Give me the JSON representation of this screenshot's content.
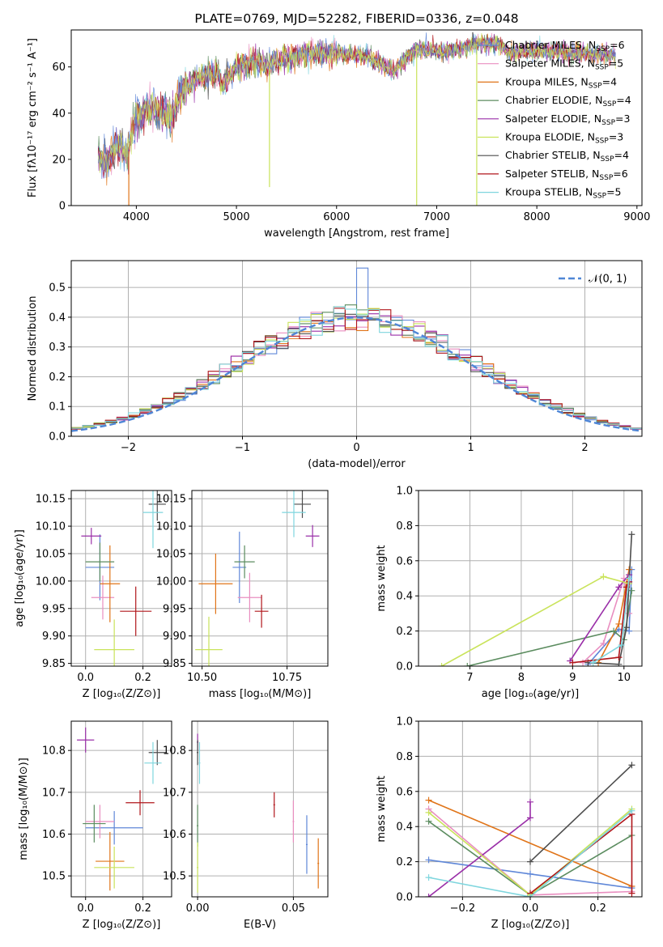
{
  "colors": {
    "s0": "#5f87d8",
    "s1": "#e98ec0",
    "s2": "#e07418",
    "s3": "#5b8c5f",
    "s4": "#9a2fa8",
    "s5": "#c9e35a",
    "s6": "#4d4d4d",
    "s7": "#b0161b",
    "s8": "#7fd6de",
    "normal": "#4f86d6",
    "grid": "#b0b0b0"
  },
  "chart_data": [
    {
      "id": "spectrum",
      "type": "line",
      "title": "PLATE=0769, MJD=52282, FIBERID=0336, z=0.048",
      "xlabel": "wavelength [Angstrom, rest frame]",
      "ylabel": "Flux [fλ10⁻¹⁷ erg cm⁻² s⁻¹ A⁻¹]",
      "xlim": [
        3350,
        9050
      ],
      "ylim": [
        0,
        76
      ],
      "xticks": [
        4000,
        5000,
        6000,
        7000,
        8000,
        9000
      ],
      "yticks": [
        0,
        20,
        40,
        60
      ],
      "grid": false,
      "legend_position": "right",
      "legend": [
        {
          "label": "Chabrier MILES, N_SSP=6"
        },
        {
          "label": "Salpeter MILES, N_SSP=5"
        },
        {
          "label": "Kroupa MILES, N_SSP=4"
        },
        {
          "label": "Chabrier ELODIE, N_SSP=4"
        },
        {
          "label": "Salpeter ELODIE, N_SSP=3"
        },
        {
          "label": "Kroupa ELODIE, N_SSP=3"
        },
        {
          "label": "Chabrier STELIB, N_SSP=4"
        },
        {
          "label": "Salpeter STELIB, N_SSP=6"
        },
        {
          "label": "Kroupa STELIB, N_SSP=5"
        }
      ],
      "continuum": [
        [
          3600,
          22
        ],
        [
          3700,
          18
        ],
        [
          3800,
          26
        ],
        [
          3920,
          22
        ],
        [
          3950,
          31
        ],
        [
          4000,
          38
        ],
        [
          4100,
          41
        ],
        [
          4300,
          41
        ],
        [
          4340,
          36
        ],
        [
          4450,
          50
        ],
        [
          4600,
          55
        ],
        [
          4800,
          58
        ],
        [
          4861,
          52
        ],
        [
          5000,
          60
        ],
        [
          5200,
          62
        ],
        [
          5300,
          60
        ],
        [
          5500,
          64
        ],
        [
          5800,
          66
        ],
        [
          6000,
          66
        ],
        [
          6300,
          65
        ],
        [
          6563,
          58
        ],
        [
          6800,
          68
        ],
        [
          7000,
          67
        ],
        [
          7200,
          67
        ],
        [
          7400,
          70
        ],
        [
          7600,
          70
        ],
        [
          7750,
          66
        ],
        [
          7900,
          67
        ],
        [
          8100,
          67
        ],
        [
          8300,
          66
        ],
        [
          8500,
          66
        ],
        [
          8800,
          65
        ]
      ],
      "spikes": [
        [
          3925,
          0
        ],
        [
          5330,
          8
        ],
        [
          6800,
          0
        ],
        [
          7400,
          0
        ],
        [
          7360,
          75
        ]
      ]
    },
    {
      "id": "residuals",
      "type": "bar",
      "title": "",
      "xlabel": "(data-model)/error",
      "ylabel": "Normed distribution",
      "xlim": [
        -2.5,
        2.5
      ],
      "ylim": [
        0,
        0.59
      ],
      "xticks": [
        -2,
        -1,
        0,
        1,
        2
      ],
      "yticks": [
        0.0,
        0.1,
        0.2,
        0.3,
        0.4,
        0.5
      ],
      "grid": true,
      "legend_position": "top-right",
      "legend": [
        {
          "label": "𝒩(0, 1)",
          "style": "dashed"
        }
      ],
      "bin_width": 0.1
    },
    {
      "id": "age_vs_Z",
      "type": "scatter",
      "xlabel": "Z [log₁₀(Z/Z⊙)]",
      "ylabel": "age  [log₁₀(age/yr)]",
      "xlim": [
        -0.05,
        0.3
      ],
      "ylim": [
        9.845,
        10.165
      ],
      "xticks": [
        0.0,
        0.2
      ],
      "yticks": [
        9.85,
        9.9,
        9.95,
        10.0,
        10.05,
        10.1,
        10.15
      ],
      "grid": true,
      "series": [
        {
          "x": 0.05,
          "y": 10.025,
          "xerr": 0.05,
          "yerr": 0.06,
          "c": "s0"
        },
        {
          "x": 0.06,
          "y": 9.97,
          "xerr": 0.04,
          "yerr": 0.04,
          "c": "s1"
        },
        {
          "x": 0.085,
          "y": 9.995,
          "xerr": 0.035,
          "yerr": 0.07,
          "c": "s2"
        },
        {
          "x": 0.05,
          "y": 10.035,
          "xerr": 0.05,
          "yerr": 0.035,
          "c": "s3"
        },
        {
          "x": 0.02,
          "y": 10.082,
          "xerr": 0.035,
          "yerr": 0.015,
          "c": "s4"
        },
        {
          "x": 0.1,
          "y": 9.875,
          "xerr": 0.07,
          "yerr": 0.055,
          "c": "s5"
        },
        {
          "x": 0.25,
          "y": 10.14,
          "xerr": 0.03,
          "yerr": 0.03,
          "c": "s6"
        },
        {
          "x": 0.175,
          "y": 9.945,
          "xerr": 0.055,
          "yerr": 0.045,
          "c": "s7"
        },
        {
          "x": 0.235,
          "y": 10.125,
          "xerr": 0.035,
          "yerr": 0.065,
          "c": "s8"
        }
      ]
    },
    {
      "id": "age_vs_mass",
      "type": "scatter",
      "xlabel": "mass [log₁₀(M/M⊙)]",
      "ylabel": "",
      "xlim": [
        10.47,
        10.87
      ],
      "ylim": [
        9.845,
        10.165
      ],
      "xticks": [
        10.5,
        10.75
      ],
      "yticks": [
        9.85,
        9.9,
        9.95,
        10.0,
        10.05,
        10.1,
        10.15
      ],
      "grid": true,
      "series": [
        {
          "x": 10.61,
          "y": 10.025,
          "xerr": 0.02,
          "yerr": 0.065,
          "c": "s0"
        },
        {
          "x": 10.64,
          "y": 9.97,
          "xerr": 0.035,
          "yerr": 0.045,
          "c": "s1"
        },
        {
          "x": 10.54,
          "y": 9.995,
          "xerr": 0.05,
          "yerr": 0.055,
          "c": "s2"
        },
        {
          "x": 10.625,
          "y": 10.035,
          "xerr": 0.03,
          "yerr": 0.03,
          "c": "s3"
        },
        {
          "x": 10.825,
          "y": 10.082,
          "xerr": 0.02,
          "yerr": 0.02,
          "c": "s4"
        },
        {
          "x": 10.52,
          "y": 9.875,
          "xerr": 0.04,
          "yerr": 0.06,
          "c": "s5"
        },
        {
          "x": 10.795,
          "y": 10.14,
          "xerr": 0.025,
          "yerr": 0.025,
          "c": "s6"
        },
        {
          "x": 10.675,
          "y": 9.945,
          "xerr": 0.02,
          "yerr": 0.03,
          "c": "s7"
        },
        {
          "x": 10.77,
          "y": 10.125,
          "xerr": 0.035,
          "yerr": 0.045,
          "c": "s8"
        }
      ]
    },
    {
      "id": "mass_weight_vs_age",
      "type": "line",
      "xlabel": "age  [log₁₀(age/yr)]",
      "ylabel": "mass weight",
      "xlim": [
        6.0,
        10.35
      ],
      "ylim": [
        0,
        1
      ],
      "xticks": [
        7,
        8,
        9,
        10
      ],
      "yticks": [
        0.0,
        0.2,
        0.4,
        0.6,
        0.8,
        1.0
      ],
      "grid": true,
      "series": [
        {
          "c": "s0",
          "points": [
            [
              9.3,
              0.01
            ],
            [
              9.9,
              0.21
            ],
            [
              10.1,
              0.2
            ],
            [
              10.15,
              0.55
            ]
          ]
        },
        {
          "c": "s1",
          "points": [
            [
              9.2,
              0.02
            ],
            [
              9.6,
              0.13
            ],
            [
              10.0,
              0.5
            ],
            [
              10.1,
              0.3
            ]
          ]
        },
        {
          "c": "s2",
          "points": [
            [
              9.5,
              0.02
            ],
            [
              9.9,
              0.24
            ],
            [
              10.1,
              0.55
            ]
          ]
        },
        {
          "c": "s3",
          "points": [
            [
              6.95,
              0.0
            ],
            [
              9.8,
              0.2
            ],
            [
              10.0,
              0.15
            ],
            [
              10.15,
              0.43
            ]
          ]
        },
        {
          "c": "s4",
          "points": [
            [
              8.95,
              0.03
            ],
            [
              9.9,
              0.45
            ],
            [
              10.1,
              0.52
            ]
          ]
        },
        {
          "c": "s5",
          "points": [
            [
              6.45,
              0.0
            ],
            [
              9.6,
              0.51
            ],
            [
              10.1,
              0.47
            ]
          ]
        },
        {
          "c": "s6",
          "points": [
            [
              9.3,
              0.02
            ],
            [
              9.9,
              0.01
            ],
            [
              10.05,
              0.22
            ],
            [
              10.15,
              0.75
            ]
          ]
        },
        {
          "c": "s7",
          "points": [
            [
              9.0,
              0.02
            ],
            [
              9.9,
              0.05
            ],
            [
              10.05,
              0.45
            ],
            [
              10.1,
              0.48
            ]
          ]
        },
        {
          "c": "s8",
          "points": [
            [
              9.4,
              0.02
            ],
            [
              9.95,
              0.12
            ],
            [
              10.1,
              0.5
            ]
          ]
        }
      ]
    },
    {
      "id": "mass_vs_Z",
      "type": "scatter",
      "xlabel": "Z [log₁₀(Z/Z⊙)]",
      "ylabel": "mass [log₁₀(M/M⊙)]",
      "xlim": [
        -0.05,
        0.3
      ],
      "ylim": [
        10.45,
        10.87
      ],
      "xticks": [
        0.0,
        0.2
      ],
      "yticks": [
        10.5,
        10.6,
        10.7,
        10.8
      ],
      "grid": true,
      "series": [
        {
          "x": 0.1,
          "y": 10.615,
          "xerr": 0.1,
          "yerr": 0.04,
          "c": "s0"
        },
        {
          "x": 0.05,
          "y": 10.63,
          "xerr": 0.05,
          "yerr": 0.04,
          "c": "s1"
        },
        {
          "x": 0.085,
          "y": 10.535,
          "xerr": 0.05,
          "yerr": 0.07,
          "c": "s2"
        },
        {
          "x": 0.03,
          "y": 10.625,
          "xerr": 0.04,
          "yerr": 0.045,
          "c": "s3"
        },
        {
          "x": 0.0,
          "y": 10.825,
          "xerr": 0.03,
          "yerr": 0.03,
          "c": "s4"
        },
        {
          "x": 0.1,
          "y": 10.52,
          "xerr": 0.07,
          "yerr": 0.05,
          "c": "s5"
        },
        {
          "x": 0.25,
          "y": 10.795,
          "xerr": 0.03,
          "yerr": 0.03,
          "c": "s6"
        },
        {
          "x": 0.19,
          "y": 10.675,
          "xerr": 0.05,
          "yerr": 0.03,
          "c": "s7"
        },
        {
          "x": 0.235,
          "y": 10.77,
          "xerr": 0.03,
          "yerr": 0.05,
          "c": "s8"
        }
      ]
    },
    {
      "id": "mass_vs_ebv",
      "type": "scatter",
      "xlabel": "E(B-V)",
      "ylabel": "",
      "xlim": [
        -0.003,
        0.068
      ],
      "ylim": [
        10.45,
        10.87
      ],
      "xticks": [
        0.0,
        0.05
      ],
      "yticks": [
        10.5,
        10.6,
        10.7,
        10.8
      ],
      "grid": true,
      "series": [
        {
          "x": 0.057,
          "y": 10.575,
          "xerr": 0,
          "yerr": 0.07,
          "c": "s0"
        },
        {
          "x": 0.05,
          "y": 10.63,
          "xerr": 0,
          "yerr": 0.05,
          "c": "s1"
        },
        {
          "x": 0.063,
          "y": 10.53,
          "xerr": 0,
          "yerr": 0.06,
          "c": "s2"
        },
        {
          "x": 0.0,
          "y": 10.62,
          "xerr": 0,
          "yerr": 0.05,
          "c": "s3"
        },
        {
          "x": 0.0,
          "y": 10.82,
          "xerr": 0,
          "yerr": 0.02,
          "c": "s4"
        },
        {
          "x": 0.0,
          "y": 10.52,
          "xerr": 0,
          "yerr": 0.06,
          "c": "s5"
        },
        {
          "x": 0.0,
          "y": 10.795,
          "xerr": 0,
          "yerr": 0.03,
          "c": "s6"
        },
        {
          "x": 0.04,
          "y": 10.67,
          "xerr": 0,
          "yerr": 0.03,
          "c": "s7"
        },
        {
          "x": 0.001,
          "y": 10.77,
          "xerr": 0,
          "yerr": 0.05,
          "c": "s8"
        }
      ]
    },
    {
      "id": "mass_weight_vs_Z",
      "type": "line",
      "xlabel": "Z [log₁₀(Z/Z⊙)]",
      "ylabel": "mass weight",
      "xlim": [
        -0.33,
        0.33
      ],
      "ylim": [
        0,
        1
      ],
      "xticks": [
        -0.2,
        0.0,
        0.2
      ],
      "yticks": [
        0.0,
        0.2,
        0.4,
        0.6,
        0.8,
        1.0
      ],
      "grid": true,
      "series": [
        {
          "c": "s0",
          "points": [
            [
              -0.3,
              0.21
            ],
            [
              0.0,
              0.13
            ],
            [
              0.3,
              0.05
            ]
          ]
        },
        {
          "c": "s1",
          "points": [
            [
              -0.3,
              0.5
            ],
            [
              0.0,
              0.01
            ],
            [
              0.3,
              0.03
            ]
          ]
        },
        {
          "c": "s2",
          "points": [
            [
              -0.3,
              0.55
            ],
            [
              0.3,
              0.06
            ]
          ]
        },
        {
          "c": "s3",
          "points": [
            [
              -0.3,
              0.43
            ],
            [
              0.0,
              0.01
            ],
            [
              0.3,
              0.35
            ]
          ]
        },
        {
          "c": "s4",
          "points": [
            [
              -0.3,
              0.0
            ],
            [
              0.0,
              0.45
            ],
            [
              0.0,
              0.54
            ]
          ]
        },
        {
          "c": "s5",
          "points": [
            [
              -0.3,
              0.48
            ],
            [
              0.0,
              0.01
            ],
            [
              0.3,
              0.5
            ]
          ]
        },
        {
          "c": "s6",
          "points": [
            [
              0.0,
              0.2
            ],
            [
              0.3,
              0.75
            ]
          ]
        },
        {
          "c": "s7",
          "points": [
            [
              0.0,
              0.02
            ],
            [
              0.3,
              0.47
            ],
            [
              0.3,
              0.02
            ]
          ]
        },
        {
          "c": "s8",
          "points": [
            [
              -0.3,
              0.11
            ],
            [
              0.0,
              0.0
            ],
            [
              0.3,
              0.49
            ]
          ]
        }
      ]
    }
  ]
}
